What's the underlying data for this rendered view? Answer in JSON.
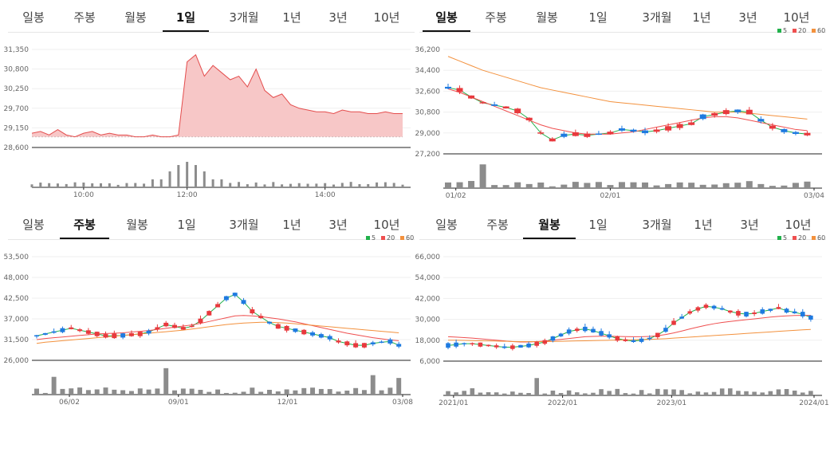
{
  "colors": {
    "up": "#e8393d",
    "down": "#1e7ae0",
    "ma5": "#21b14b",
    "ma20": "#ef4f4f",
    "ma60": "#f3913d",
    "fill": "#f7c7c7",
    "line": "#e44d4d",
    "vol": "#8c8c8c"
  },
  "legend": {
    "ma5": "5",
    "ma20": "20",
    "ma60": "60"
  },
  "panels": [
    {
      "tabs": [
        "일봉",
        "주봉",
        "월봉",
        "1일",
        "3개월",
        "1년",
        "3년",
        "10년"
      ],
      "active": 3
    },
    {
      "tabs": [
        "일봉",
        "주봉",
        "월봉",
        "1일",
        "3개월",
        "1년",
        "3년",
        "10년"
      ],
      "active": 0
    },
    {
      "tabs": [
        "일봉",
        "주봉",
        "월봉",
        "1일",
        "3개월",
        "1년",
        "3년",
        "10년"
      ],
      "active": 1
    },
    {
      "tabs": [
        "일봉",
        "주봉",
        "월봉",
        "1일",
        "3개월",
        "1년",
        "3년",
        "10년"
      ],
      "active": 2
    }
  ],
  "chart_data": [
    {
      "type": "area",
      "yticks": [
        "31,350",
        "30,800",
        "30,250",
        "29,700",
        "29,150",
        "28,600"
      ],
      "ylim": [
        28600,
        31350
      ],
      "xticks": [
        "10:00",
        "12:00",
        "14:00"
      ],
      "x": [
        "09:00",
        "09:10",
        "09:20",
        "09:30",
        "09:40",
        "09:50",
        "10:00",
        "10:10",
        "10:20",
        "10:30",
        "10:40",
        "10:50",
        "11:00",
        "11:10",
        "11:20",
        "11:30",
        "11:40",
        "11:50",
        "12:00",
        "12:02",
        "12:05",
        "12:10",
        "12:15",
        "12:20",
        "12:25",
        "12:30",
        "12:40",
        "12:50",
        "13:00",
        "13:10",
        "13:20",
        "13:30",
        "13:40",
        "13:50",
        "14:00",
        "14:10",
        "14:20",
        "14:30",
        "14:40",
        "14:50",
        "15:00",
        "15:10",
        "15:20",
        "15:30"
      ],
      "values": [
        29000,
        29050,
        28950,
        29100,
        28950,
        28900,
        29000,
        29050,
        28950,
        29000,
        28950,
        28950,
        28900,
        28900,
        28950,
        28900,
        28900,
        28950,
        31000,
        31200,
        30600,
        30900,
        30700,
        30500,
        30600,
        30300,
        30800,
        30200,
        30000,
        30100,
        29800,
        29700,
        29650,
        29600,
        29600,
        29550,
        29650,
        29600,
        29600,
        29550,
        29550,
        29600,
        29550,
        29550
      ],
      "base": 28900,
      "volume_peaks": [
        "12:00"
      ]
    },
    {
      "type": "candlestick",
      "yticks": [
        "36,200",
        "34,400",
        "32,600",
        "30,800",
        "29,000",
        "27,200"
      ],
      "ylim": [
        27200,
        36200
      ],
      "xticks": [
        "01/02",
        "02/01",
        "03/04"
      ],
      "series": [
        {
          "name": "5",
          "values": [
            32900,
            32700,
            32100,
            31600,
            31400,
            31200,
            30900,
            30200,
            29000,
            28400,
            28800,
            28900,
            28800,
            28900,
            29000,
            29300,
            29200,
            29100,
            29200,
            29400,
            29600,
            29800,
            30400,
            30600,
            30800,
            30900,
            30800,
            30100,
            29500,
            29200,
            29000,
            28900
          ]
        },
        {
          "name": "20",
          "values": [
            32800,
            32500,
            32100,
            31700,
            31300,
            30900,
            30500,
            30100,
            29700,
            29400,
            29200,
            29000,
            28900,
            28900,
            28900,
            29000,
            29100,
            29300,
            29500,
            29700,
            29900,
            30100,
            30300,
            30400,
            30400,
            30300,
            30100,
            29900,
            29700,
            29500,
            29300,
            29200
          ]
        },
        {
          "name": "60",
          "values": [
            35600,
            35200,
            34800,
            34400,
            34100,
            33800,
            33500,
            33200,
            32900,
            32700,
            32500,
            32300,
            32100,
            31900,
            31700,
            31600,
            31500,
            31400,
            31300,
            31200,
            31100,
            31000,
            30900,
            30800,
            30800,
            30800,
            30700,
            30600,
            30500,
            30400,
            30300,
            30200
          ]
        }
      ]
    },
    {
      "type": "candlestick",
      "yticks": [
        "53,500",
        "48,000",
        "42,500",
        "37,000",
        "31,500",
        "26,000"
      ],
      "ylim": [
        26000,
        53500
      ],
      "xticks": [
        "06/02",
        "09/01",
        "12/01",
        "03/08"
      ],
      "series": [
        {
          "name": "5",
          "values": [
            32500,
            33000,
            33500,
            34000,
            34500,
            34000,
            33500,
            33000,
            32500,
            32500,
            32600,
            32800,
            33000,
            33500,
            34500,
            35500,
            35000,
            34500,
            35000,
            36500,
            38500,
            40500,
            42500,
            43500,
            41500,
            39000,
            37500,
            36000,
            35000,
            34500,
            34000,
            33500,
            33000,
            32500,
            32000,
            31000,
            30500,
            30000,
            30000,
            30500,
            30800,
            31000,
            30000
          ]
        },
        {
          "name": "20",
          "values": [
            31500,
            31800,
            32000,
            32200,
            32400,
            32600,
            32800,
            33000,
            33100,
            33200,
            33300,
            33500,
            33700,
            33900,
            34200,
            34500,
            34800,
            35100,
            35400,
            35800,
            36300,
            36800,
            37300,
            37800,
            37900,
            37800,
            37600,
            37300,
            37000,
            36600,
            36200,
            35700,
            35200,
            34700,
            34200,
            33700,
            33200,
            32800,
            32400,
            32000,
            31700,
            31400,
            31200
          ]
        },
        {
          "name": "60",
          "values": [
            30500,
            30800,
            31000,
            31200,
            31400,
            31600,
            31800,
            32000,
            32200,
            32400,
            32600,
            32800,
            33000,
            33200,
            33400,
            33600,
            33800,
            34000,
            34300,
            34600,
            34900,
            35200,
            35500,
            35700,
            35900,
            36000,
            36100,
            36100,
            36000,
            35900,
            35700,
            35500,
            35300,
            35100,
            34900,
            34700,
            34500,
            34300,
            34100,
            33900,
            33700,
            33500,
            33300
          ]
        }
      ]
    },
    {
      "type": "candlestick",
      "yticks": [
        "66,000",
        "54,000",
        "42,000",
        "30,000",
        "18,000",
        "6,000"
      ],
      "ylim": [
        6000,
        66000
      ],
      "xticks": [
        "2021/01",
        "2022/01",
        "2023/01",
        "2024/01"
      ],
      "series": [
        {
          "name": "5",
          "values": [
            15000,
            15500,
            16000,
            16000,
            15500,
            15000,
            14500,
            14000,
            14000,
            14500,
            15000,
            16000,
            17000,
            19000,
            21000,
            23000,
            24000,
            24500,
            23500,
            22000,
            20500,
            19000,
            18000,
            17500,
            18000,
            19000,
            21000,
            24000,
            28000,
            31000,
            34000,
            36000,
            37500,
            37000,
            36000,
            34500,
            33500,
            33000,
            33500,
            34500,
            35500,
            36500,
            35000,
            34000,
            33000,
            31000
          ]
        },
        {
          "name": "20",
          "values": [
            20000,
            19800,
            19500,
            19200,
            18800,
            18400,
            18000,
            17600,
            17200,
            17000,
            17000,
            17200,
            17500,
            18000,
            18500,
            19000,
            19500,
            20000,
            20200,
            20300,
            20300,
            20200,
            20100,
            20000,
            20000,
            20200,
            20600,
            21300,
            22200,
            23300,
            24500,
            25600,
            26600,
            27500,
            28200,
            28800,
            29300,
            29800,
            30300,
            30800,
            31300,
            31700,
            32000,
            32200,
            32300,
            32300
          ]
        },
        {
          "name": "60",
          "values": [
            18000,
            18000,
            17900,
            17800,
            17700,
            17600,
            17500,
            17400,
            17300,
            17200,
            17200,
            17200,
            17200,
            17300,
            17400,
            17500,
            17600,
            17700,
            17800,
            17900,
            18000,
            18100,
            18200,
            18300,
            18400,
            18500,
            18700,
            18900,
            19200,
            19500,
            19800,
            20100,
            20400,
            20700,
            21000,
            21300,
            21600,
            21900,
            22200,
            22500,
            22800,
            23100,
            23400,
            23700,
            24000,
            24200
          ]
        }
      ]
    }
  ]
}
